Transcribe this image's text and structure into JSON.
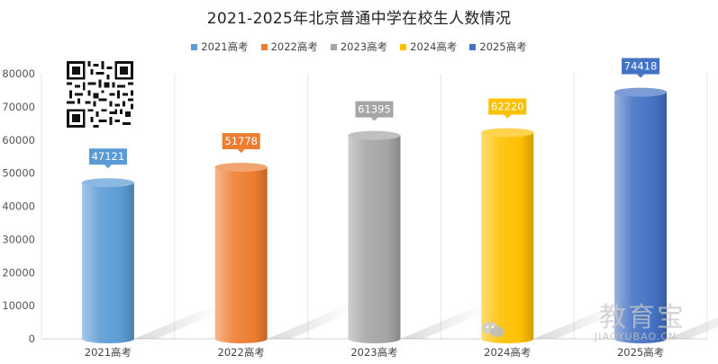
{
  "watermark": {
    "brand": "教育宝",
    "site": "JIAOYUBAO.CN"
  },
  "chart_data": {
    "type": "bar",
    "title": "2021-2025年北京普通中学在校生人数情况",
    "categories": [
      "2021高考",
      "2022高考",
      "2023高考",
      "2024高考",
      "2025高考"
    ],
    "values": [
      47121,
      51778,
      61395,
      62220,
      74418
    ],
    "colors": [
      "#5b9bd5",
      "#ed7d31",
      "#a5a5a5",
      "#ffc000",
      "#4472c4"
    ],
    "legend": [
      "2021高考",
      "2022高考",
      "2023高考",
      "2024高考",
      "2025高考"
    ],
    "legend_position": "top",
    "xlabel": "",
    "ylabel": "",
    "ylim": [
      0,
      80000
    ],
    "yticks": [
      0,
      10000,
      20000,
      30000,
      40000,
      50000,
      60000,
      70000,
      80000
    ],
    "grid": "vertical",
    "style": "3d-cylinder"
  }
}
